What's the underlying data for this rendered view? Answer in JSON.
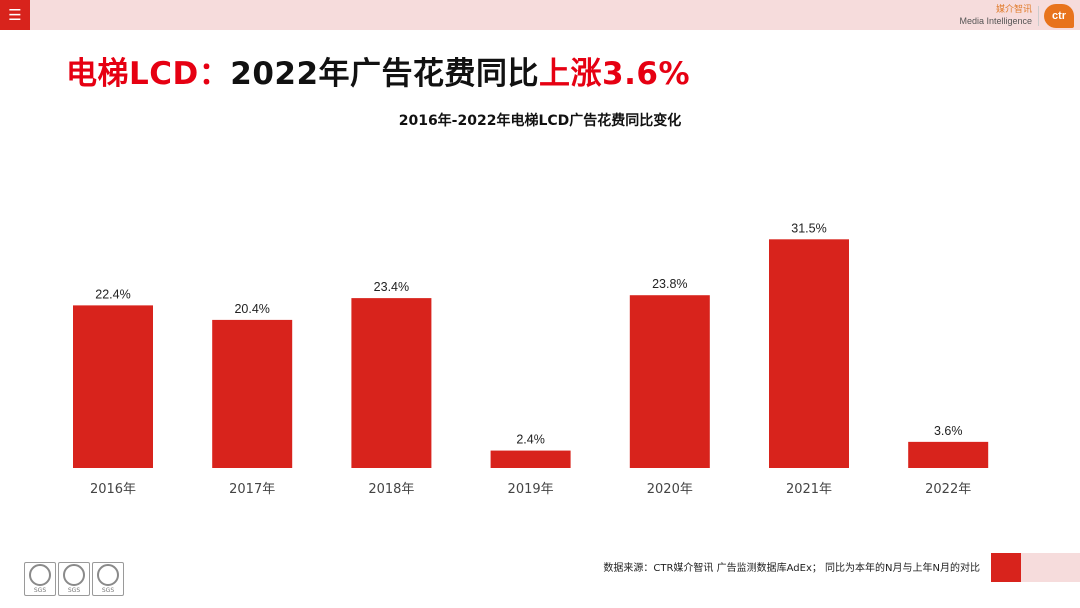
{
  "header": {
    "menu_icon": "☰",
    "brand_cn": "媒介智讯",
    "brand_en": "Media Intelligence",
    "brand_logo": "ctr"
  },
  "headline": {
    "part1": "电梯LCD：",
    "part2": "2022年广告花费同比",
    "part3": "上涨3.6%"
  },
  "chart_data": {
    "type": "bar",
    "title": "2016年-2022年电梯LCD广告花费同比变化",
    "categories": [
      "2016年",
      "2017年",
      "2018年",
      "2019年",
      "2020年",
      "2021年",
      "2022年"
    ],
    "values": [
      22.4,
      20.4,
      23.4,
      2.4,
      23.8,
      31.5,
      3.6
    ],
    "data_labels": [
      "22.4%",
      "20.4%",
      "23.4%",
      "2.4%",
      "23.8%",
      "31.5%",
      "3.6%"
    ],
    "unit": "%",
    "xlabel": "",
    "ylabel": "",
    "ylim": [
      0,
      40
    ],
    "grid": false,
    "legend": "none",
    "bar_color": "#d8231c"
  },
  "footer": {
    "sgs_labels": [
      "SGS",
      "SGS",
      "SGS"
    ],
    "source_text": "数据来源：CTR媒介智讯 广告监测数据库AdEx；  同比为本年的N月与上年N月的对比"
  },
  "colors": {
    "accent_red": "#d8231c",
    "headline_red": "#e60012",
    "header_pink": "#f6dcdc",
    "brand_orange": "#e8731c"
  }
}
